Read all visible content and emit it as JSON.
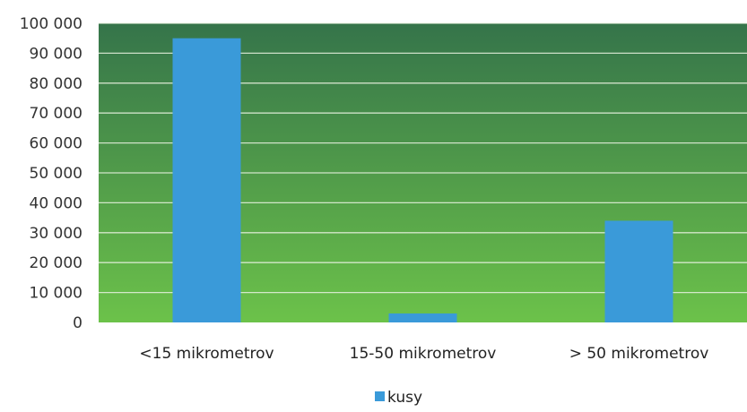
{
  "chart_data": {
    "type": "bar",
    "categories": [
      "<15 mikrometrov",
      "15-50 mikrometrov",
      "> 50 mikrometrov"
    ],
    "series": [
      {
        "name": "kusy",
        "values": [
          95000,
          3000,
          34000
        ],
        "color": "#3a9ad9"
      }
    ],
    "ylim": [
      0,
      100000
    ],
    "yticks": [
      0,
      10000,
      20000,
      30000,
      40000,
      50000,
      60000,
      70000,
      80000,
      90000,
      100000
    ],
    "ytick_labels": [
      "0",
      "10 000",
      "20 000",
      "30 000",
      "40 000",
      "50 000",
      "60 000",
      "70 000",
      "80 000",
      "90 000",
      "100 000"
    ],
    "grid": true,
    "legend_position": "bottom",
    "plot_background": {
      "top": "#35744a",
      "bottom": "#6cc24a"
    },
    "gridline_color": "#e8f2e0"
  }
}
